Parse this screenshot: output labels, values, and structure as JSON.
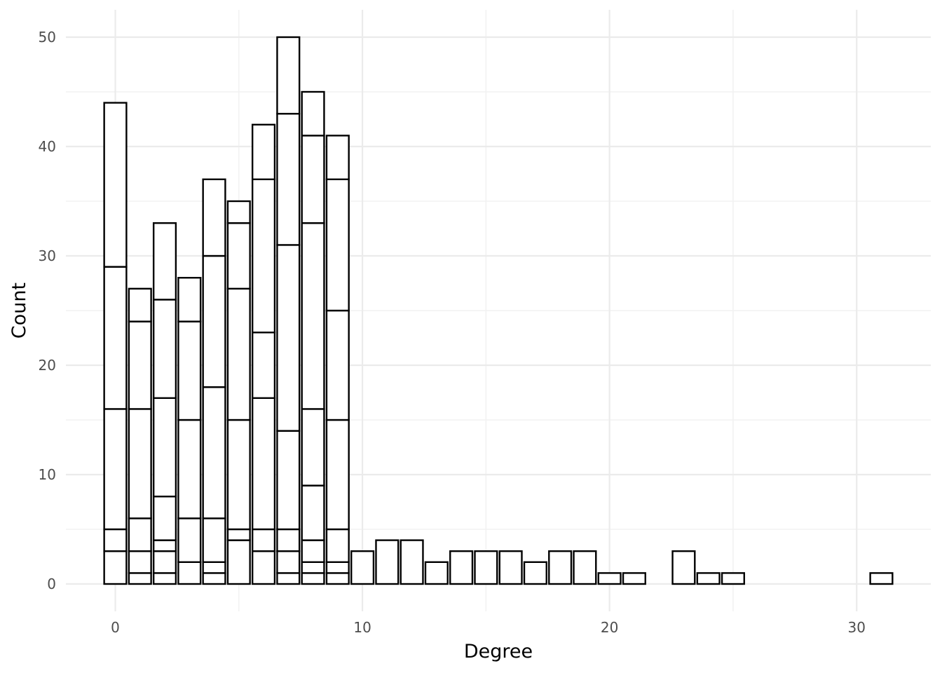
{
  "chart_data": {
    "type": "bar",
    "stacked": true,
    "title": "",
    "xlabel": "Degree",
    "ylabel": "Count",
    "xlim": [
      -2,
      33
    ],
    "ylim": [
      -2.5,
      52.5
    ],
    "xticks": [
      0,
      10,
      20,
      30
    ],
    "yticks": [
      0,
      10,
      20,
      30,
      40,
      50
    ],
    "grid": true,
    "bar_width": 0.9,
    "fill_color": "#ffffff",
    "outline_color": "#000000",
    "bars": [
      {
        "x": 0,
        "segments": [
          3,
          2,
          11,
          13,
          15
        ]
      },
      {
        "x": 1,
        "segments": [
          1,
          2,
          3,
          10,
          8,
          3
        ]
      },
      {
        "x": 2,
        "segments": [
          1,
          2,
          1,
          4,
          9,
          9,
          7
        ]
      },
      {
        "x": 3,
        "segments": [
          2,
          4,
          9,
          9,
          4
        ]
      },
      {
        "x": 4,
        "segments": [
          1,
          1,
          4,
          12,
          12,
          7
        ]
      },
      {
        "x": 5,
        "segments": [
          4,
          1,
          10,
          12,
          6,
          2
        ]
      },
      {
        "x": 6,
        "segments": [
          3,
          2,
          12,
          6,
          14,
          5
        ]
      },
      {
        "x": 7,
        "segments": [
          1,
          2,
          2,
          9,
          17,
          12,
          7
        ]
      },
      {
        "x": 8,
        "segments": [
          1,
          1,
          2,
          5,
          7,
          17,
          8,
          4
        ]
      },
      {
        "x": 9,
        "segments": [
          1,
          1,
          3,
          10,
          10,
          12,
          4
        ]
      },
      {
        "x": 10,
        "segments": [
          3
        ]
      },
      {
        "x": 11,
        "segments": [
          4
        ]
      },
      {
        "x": 12,
        "segments": [
          4
        ]
      },
      {
        "x": 13,
        "segments": [
          2
        ]
      },
      {
        "x": 14,
        "segments": [
          3
        ]
      },
      {
        "x": 15,
        "segments": [
          3
        ]
      },
      {
        "x": 16,
        "segments": [
          3
        ]
      },
      {
        "x": 17,
        "segments": [
          2
        ]
      },
      {
        "x": 18,
        "segments": [
          3
        ]
      },
      {
        "x": 19,
        "segments": [
          3
        ]
      },
      {
        "x": 20,
        "segments": [
          1
        ]
      },
      {
        "x": 21,
        "segments": [
          1
        ]
      },
      {
        "x": 23,
        "segments": [
          3
        ]
      },
      {
        "x": 24,
        "segments": [
          1
        ]
      },
      {
        "x": 25,
        "segments": [
          1
        ]
      },
      {
        "x": 31,
        "segments": [
          1
        ]
      }
    ]
  }
}
